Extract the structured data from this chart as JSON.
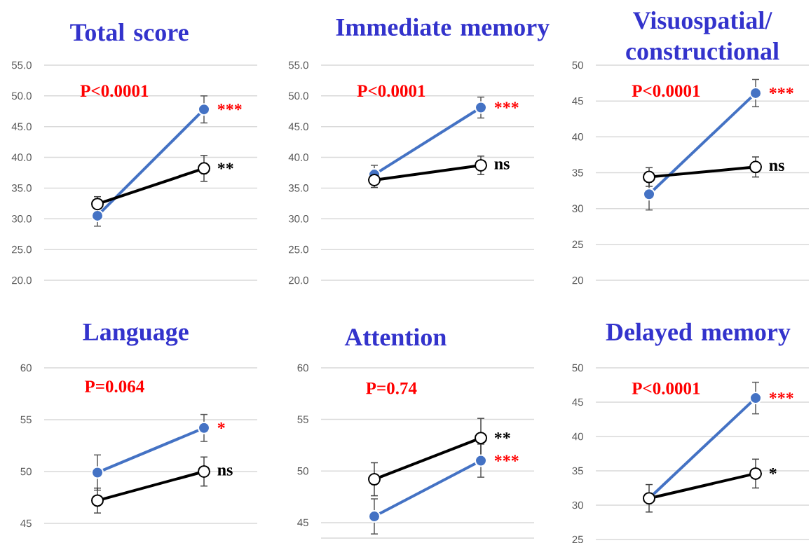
{
  "chart_data": [
    {
      "type": "line",
      "title": "Total score",
      "categories": [
        null,
        null
      ],
      "ylim": [
        20,
        55
      ],
      "yticks": [
        {
          "value": 20,
          "label": "20.0"
        },
        {
          "value": 25,
          "label": "25.0"
        },
        {
          "value": 30,
          "label": "30.0"
        },
        {
          "value": 35,
          "label": "35.0"
        },
        {
          "value": 40,
          "label": "40.0"
        },
        {
          "value": 45,
          "label": "45.0"
        },
        {
          "value": 50,
          "label": "50.0"
        },
        {
          "value": 55,
          "label": "55.0"
        }
      ],
      "grid": "y",
      "marker": "circle",
      "series": [
        {
          "color": "#4472c4",
          "values": [
            30.5,
            47.8
          ],
          "errors": [
            1.7,
            2.2
          ],
          "value_labels": [
            null,
            "***"
          ]
        },
        {
          "color": "#000000",
          "values": [
            32.4,
            38.2
          ],
          "errors": [
            1.2,
            2.1
          ],
          "value_labels": [
            null,
            "**"
          ]
        }
      ],
      "annotations": [
        "P<0.0001"
      ]
    },
    {
      "type": "line",
      "title": "Immediate memory",
      "categories": [
        null,
        null
      ],
      "ylim": [
        20,
        55
      ],
      "yticks": [
        {
          "value": 20,
          "label": "20.0"
        },
        {
          "value": 25,
          "label": "25.0"
        },
        {
          "value": 30,
          "label": "30.0"
        },
        {
          "value": 35,
          "label": "35.0"
        },
        {
          "value": 40,
          "label": "40.0"
        },
        {
          "value": 45,
          "label": "45.0"
        },
        {
          "value": 50,
          "label": "50.0"
        },
        {
          "value": 55,
          "label": "55.0"
        }
      ],
      "grid": "y",
      "marker": "circle",
      "series": [
        {
          "color": "#4472c4",
          "values": [
            37.2,
            48.1
          ],
          "errors": [
            1.5,
            1.7
          ],
          "value_labels": [
            null,
            "***"
          ]
        },
        {
          "color": "#000000",
          "values": [
            36.3,
            38.7
          ],
          "errors": [
            1.2,
            1.5
          ],
          "value_labels": [
            null,
            "ns"
          ]
        }
      ],
      "annotations": [
        "P<0.0001"
      ]
    },
    {
      "type": "line",
      "title": "Visuospatial/ constructional",
      "categories": [
        null,
        null
      ],
      "ylim": [
        20,
        50
      ],
      "yticks": [
        20,
        25,
        30,
        35,
        40,
        45,
        50
      ],
      "grid": "y",
      "marker": "circle",
      "series": [
        {
          "color": "#4472c4",
          "values": [
            32.0,
            46.1
          ],
          "errors": [
            2.2,
            1.9
          ],
          "value_labels": [
            null,
            "***"
          ]
        },
        {
          "color": "#000000",
          "values": [
            34.4,
            35.8
          ],
          "errors": [
            1.3,
            1.4
          ],
          "value_labels": [
            null,
            "ns"
          ]
        }
      ],
      "annotations": [
        "P<0.0001"
      ]
    },
    {
      "type": "line",
      "title": "Language",
      "categories": [
        null,
        null
      ],
      "ylim": [
        45,
        60
      ],
      "yticks": [
        45,
        50,
        55,
        60
      ],
      "grid": "y",
      "marker": "circle",
      "series": [
        {
          "color": "#4472c4",
          "values": [
            49.9,
            54.2
          ],
          "errors": [
            1.7,
            1.3
          ],
          "value_labels": [
            null,
            "*"
          ]
        },
        {
          "color": "#000000",
          "values": [
            47.2,
            50.0
          ],
          "errors": [
            1.2,
            1.4
          ],
          "value_labels": [
            null,
            "ns"
          ]
        }
      ],
      "annotations": [
        "P=0.064"
      ]
    },
    {
      "type": "line",
      "title": "Attention",
      "categories": [
        null,
        null
      ],
      "ylim": [
        43.5,
        60
      ],
      "yticks": [
        45,
        50,
        55,
        60
      ],
      "grid": "y",
      "marker": "circle",
      "series": [
        {
          "color": "#4472c4",
          "values": [
            45.6,
            51.0
          ],
          "errors": [
            1.7,
            1.6
          ],
          "value_labels": [
            null,
            "***"
          ]
        },
        {
          "color": "#000000",
          "values": [
            49.2,
            53.2
          ],
          "errors": [
            1.6,
            1.9
          ],
          "value_labels": [
            null,
            "**"
          ]
        }
      ],
      "annotations": [
        "P=0.74"
      ]
    },
    {
      "type": "line",
      "title": "Delayed memory",
      "categories": [
        null,
        null
      ],
      "ylim": [
        25,
        50
      ],
      "yticks": [
        25,
        30,
        35,
        40,
        45,
        50
      ],
      "grid": "y",
      "marker": "circle",
      "series": [
        {
          "color": "#4472c4",
          "values": [
            31.0,
            45.6
          ],
          "errors": [
            null,
            2.3
          ],
          "value_labels": [
            null,
            "***"
          ]
        },
        {
          "color": "#000000",
          "values": [
            31.0,
            34.6
          ],
          "errors": [
            2.0,
            2.1
          ],
          "value_labels": [
            null,
            "*"
          ]
        }
      ],
      "annotations": [
        "P<0.0001"
      ]
    }
  ]
}
